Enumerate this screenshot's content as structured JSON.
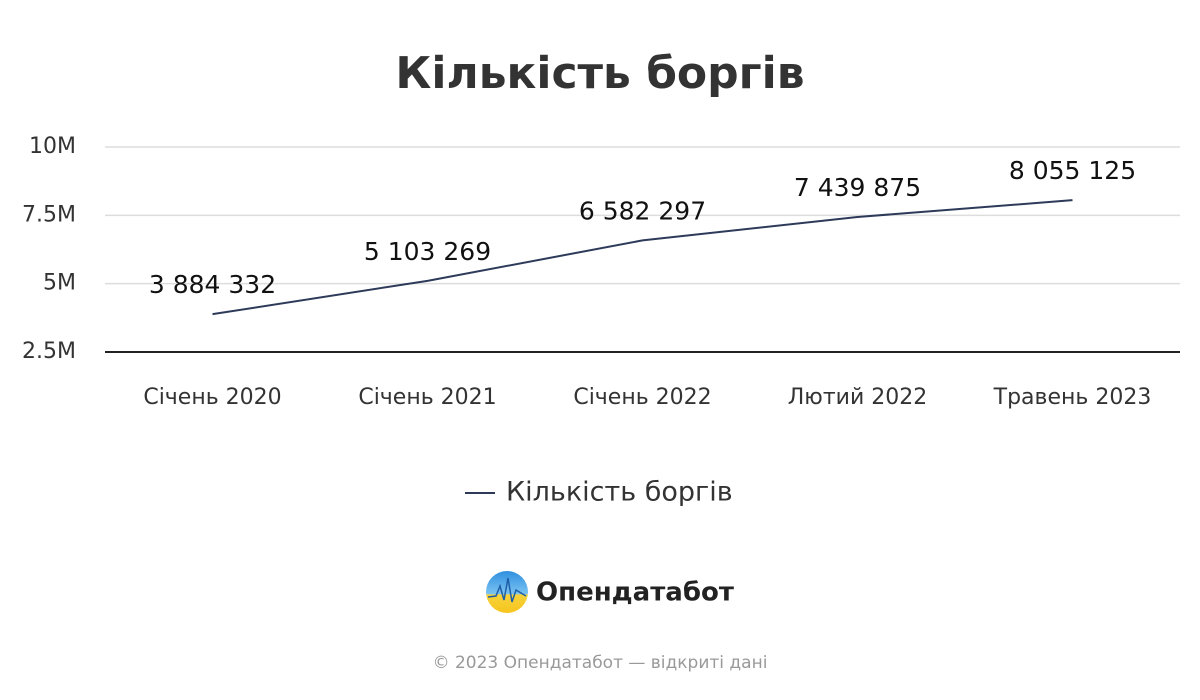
{
  "chart_data": {
    "type": "line",
    "title": "Кількість боргів",
    "categories": [
      "Січень 2020",
      "Січень 2021",
      "Січень 2022",
      "Лютий 2022",
      "Травень 2023"
    ],
    "series": [
      {
        "name": "Кількість боргів",
        "color": "#2d3a5a",
        "values": [
          3884332,
          5103269,
          6582297,
          7439875,
          8055125
        ],
        "value_labels": [
          "3 884 332",
          "5 103 269",
          "6 582 297",
          "7 439 875",
          "8 055 125"
        ]
      }
    ],
    "ylim": [
      2500000,
      10000000
    ],
    "yticks": [
      {
        "value": 2500000,
        "label": "2.5M"
      },
      {
        "value": 5000000,
        "label": "5M"
      },
      {
        "value": 7500000,
        "label": "7.5M"
      },
      {
        "value": 10000000,
        "label": "10M"
      }
    ],
    "grid": true,
    "legend": "bottom"
  },
  "logo": "Опендатабот",
  "footer": "© 2023 Опендатабот — відкриті дані"
}
